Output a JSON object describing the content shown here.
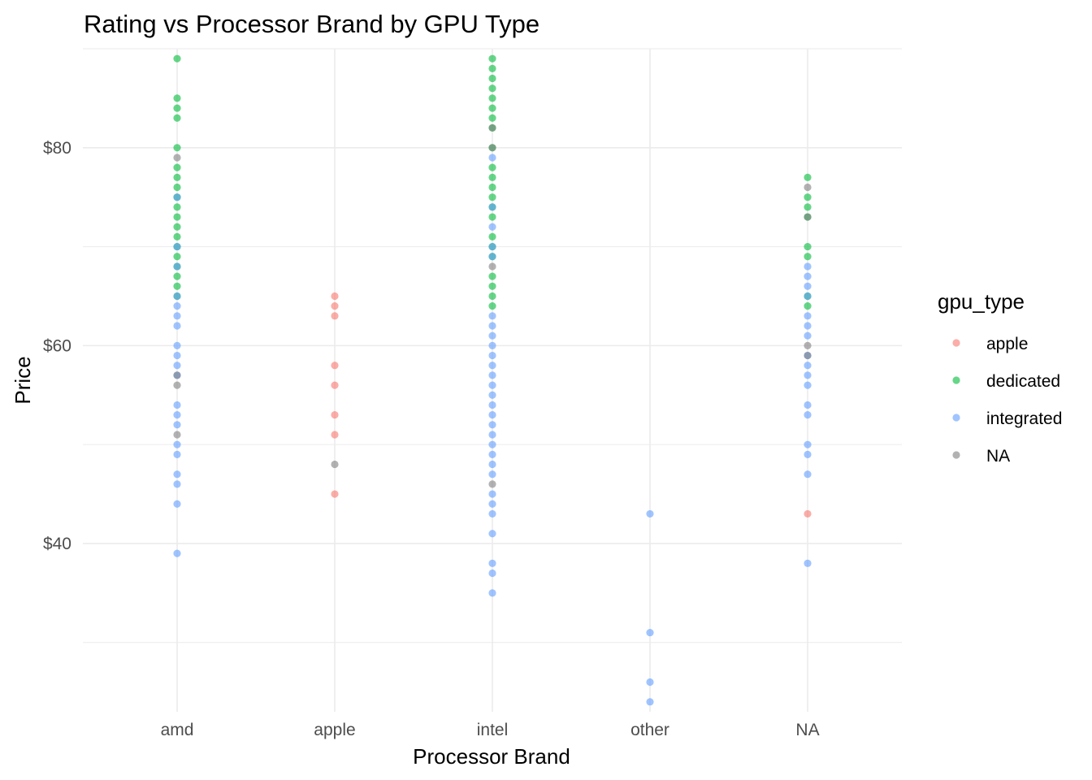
{
  "chart_data": {
    "type": "scatter",
    "title": "Rating vs Processor Brand by GPU Type",
    "xlabel": "Processor Brand",
    "ylabel": "Price",
    "x_type": "categorical",
    "categories": [
      "amd",
      "apple",
      "intel",
      "other",
      "NA"
    ],
    "ylim": [
      23,
      90
    ],
    "y_ticks": [
      40,
      60,
      80
    ],
    "y_tick_labels": [
      "$40",
      "$60",
      "$80"
    ],
    "grid": true,
    "legend": {
      "title": "gpu_type",
      "position": "right"
    },
    "series": [
      {
        "name": "apple",
        "color": "#F8766D",
        "points": [
          [
            "apple",
            65
          ],
          [
            "apple",
            64
          ],
          [
            "apple",
            63
          ],
          [
            "apple",
            58
          ],
          [
            "apple",
            56
          ],
          [
            "apple",
            53
          ],
          [
            "apple",
            51
          ],
          [
            "apple",
            45
          ],
          [
            "NA",
            43
          ]
        ]
      },
      {
        "name": "dedicated",
        "color": "#00BA38",
        "points": [
          [
            "amd",
            89
          ],
          [
            "amd",
            85
          ],
          [
            "amd",
            84
          ],
          [
            "amd",
            83
          ],
          [
            "amd",
            80
          ],
          [
            "amd",
            78
          ],
          [
            "amd",
            77
          ],
          [
            "amd",
            76
          ],
          [
            "amd",
            75
          ],
          [
            "amd",
            74
          ],
          [
            "amd",
            73
          ],
          [
            "amd",
            72
          ],
          [
            "amd",
            71
          ],
          [
            "amd",
            70
          ],
          [
            "amd",
            69
          ],
          [
            "amd",
            68
          ],
          [
            "amd",
            67
          ],
          [
            "amd",
            66
          ],
          [
            "amd",
            65
          ],
          [
            "intel",
            89
          ],
          [
            "intel",
            88
          ],
          [
            "intel",
            87
          ],
          [
            "intel",
            86
          ],
          [
            "intel",
            85
          ],
          [
            "intel",
            84
          ],
          [
            "intel",
            83
          ],
          [
            "intel",
            82
          ],
          [
            "intel",
            80
          ],
          [
            "intel",
            78
          ],
          [
            "intel",
            77
          ],
          [
            "intel",
            76
          ],
          [
            "intel",
            75
          ],
          [
            "intel",
            74
          ],
          [
            "intel",
            73
          ],
          [
            "intel",
            71
          ],
          [
            "intel",
            70
          ],
          [
            "intel",
            69
          ],
          [
            "intel",
            67
          ],
          [
            "intel",
            66
          ],
          [
            "intel",
            65
          ],
          [
            "intel",
            64
          ],
          [
            "NA",
            77
          ],
          [
            "NA",
            75
          ],
          [
            "NA",
            74
          ],
          [
            "NA",
            73
          ],
          [
            "NA",
            70
          ],
          [
            "NA",
            69
          ],
          [
            "NA",
            65
          ],
          [
            "NA",
            64
          ]
        ]
      },
      {
        "name": "integrated",
        "color": "#619CFF",
        "points": [
          [
            "amd",
            75
          ],
          [
            "amd",
            70
          ],
          [
            "amd",
            68
          ],
          [
            "amd",
            65
          ],
          [
            "amd",
            64
          ],
          [
            "amd",
            63
          ],
          [
            "amd",
            62
          ],
          [
            "amd",
            60
          ],
          [
            "amd",
            59
          ],
          [
            "amd",
            58
          ],
          [
            "amd",
            57
          ],
          [
            "amd",
            54
          ],
          [
            "amd",
            53
          ],
          [
            "amd",
            52
          ],
          [
            "amd",
            50
          ],
          [
            "amd",
            49
          ],
          [
            "amd",
            47
          ],
          [
            "amd",
            46
          ],
          [
            "amd",
            44
          ],
          [
            "amd",
            39
          ],
          [
            "intel",
            79
          ],
          [
            "intel",
            74
          ],
          [
            "intel",
            72
          ],
          [
            "intel",
            70
          ],
          [
            "intel",
            69
          ],
          [
            "intel",
            63
          ],
          [
            "intel",
            62
          ],
          [
            "intel",
            61
          ],
          [
            "intel",
            60
          ],
          [
            "intel",
            59
          ],
          [
            "intel",
            58
          ],
          [
            "intel",
            57
          ],
          [
            "intel",
            56
          ],
          [
            "intel",
            55
          ],
          [
            "intel",
            54
          ],
          [
            "intel",
            53
          ],
          [
            "intel",
            52
          ],
          [
            "intel",
            51
          ],
          [
            "intel",
            50
          ],
          [
            "intel",
            49
          ],
          [
            "intel",
            48
          ],
          [
            "intel",
            47
          ],
          [
            "intel",
            45
          ],
          [
            "intel",
            44
          ],
          [
            "intel",
            43
          ],
          [
            "intel",
            41
          ],
          [
            "intel",
            38
          ],
          [
            "intel",
            37
          ],
          [
            "intel",
            35
          ],
          [
            "other",
            43
          ],
          [
            "other",
            31
          ],
          [
            "other",
            26
          ],
          [
            "other",
            24
          ],
          [
            "NA",
            68
          ],
          [
            "NA",
            67
          ],
          [
            "NA",
            66
          ],
          [
            "NA",
            65
          ],
          [
            "NA",
            63
          ],
          [
            "NA",
            62
          ],
          [
            "NA",
            61
          ],
          [
            "NA",
            59
          ],
          [
            "NA",
            58
          ],
          [
            "NA",
            57
          ],
          [
            "NA",
            56
          ],
          [
            "NA",
            54
          ],
          [
            "NA",
            53
          ],
          [
            "NA",
            50
          ],
          [
            "NA",
            49
          ],
          [
            "NA",
            47
          ],
          [
            "NA",
            38
          ]
        ]
      },
      {
        "name": "NA",
        "color": "#7F7F7F",
        "points": [
          [
            "amd",
            79
          ],
          [
            "amd",
            57
          ],
          [
            "amd",
            56
          ],
          [
            "amd",
            51
          ],
          [
            "apple",
            48
          ],
          [
            "intel",
            82
          ],
          [
            "intel",
            80
          ],
          [
            "intel",
            68
          ],
          [
            "intel",
            46
          ],
          [
            "NA",
            76
          ],
          [
            "NA",
            73
          ],
          [
            "NA",
            60
          ],
          [
            "NA",
            59
          ]
        ]
      }
    ]
  }
}
